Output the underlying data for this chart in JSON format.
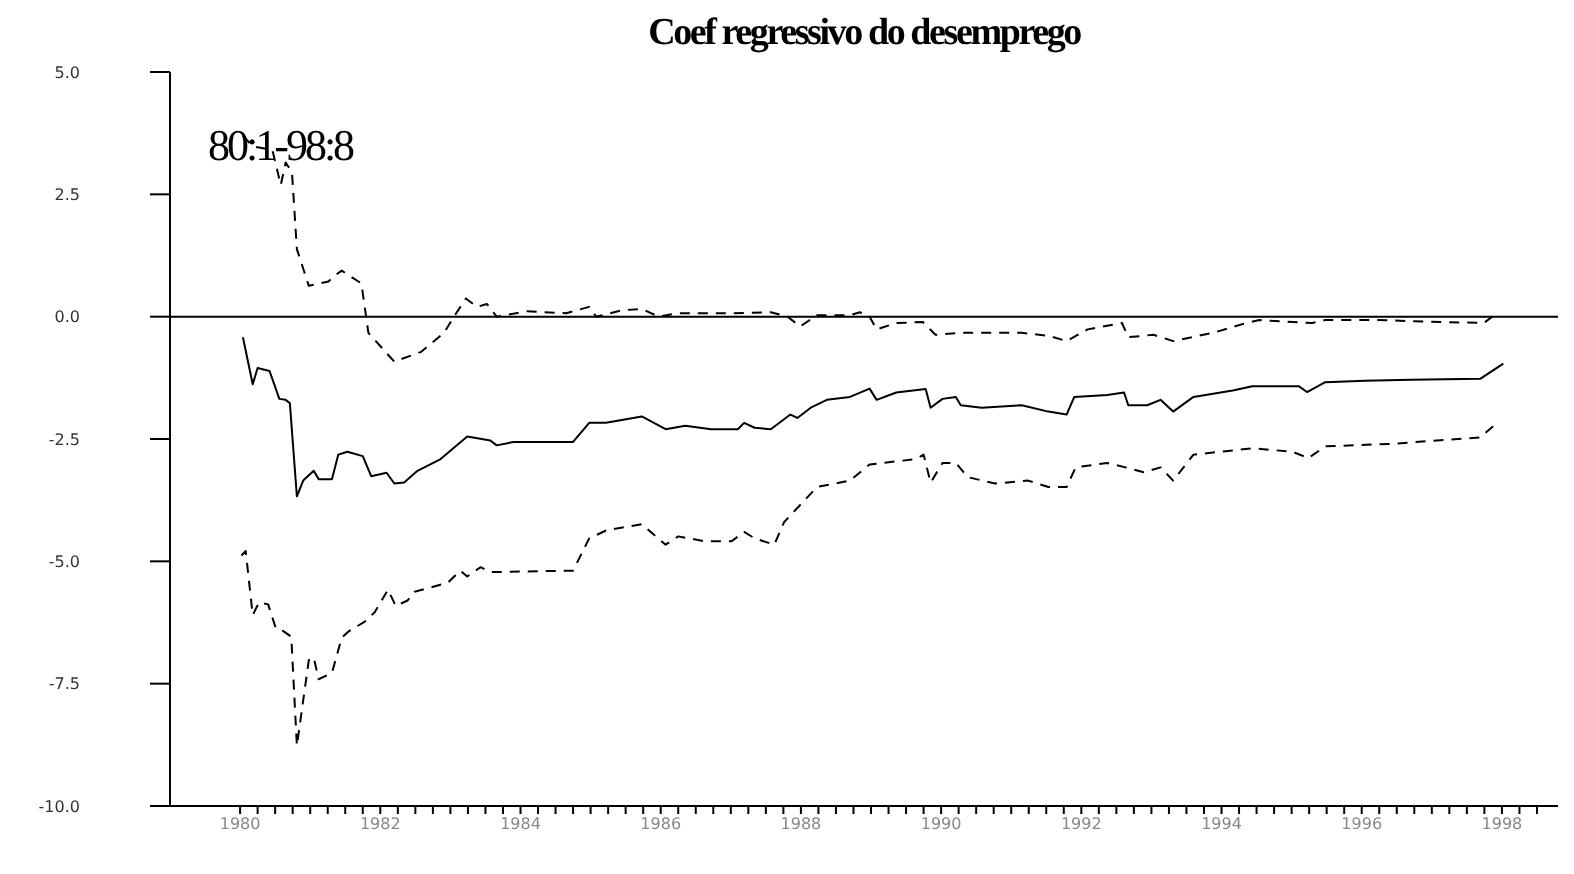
{
  "chart_data": {
    "type": "line",
    "title": "Coef regressivo do desemprego",
    "annotations": [
      "80:1-98:8"
    ],
    "marker": "none",
    "grid": false,
    "xlim": [
      1979,
      1998.8
    ],
    "ylim": [
      -10,
      5
    ],
    "yticks": [
      {
        "value": -10,
        "label": "-10.0"
      },
      {
        "value": -7.5,
        "label": "-7.5"
      },
      {
        "value": -5,
        "label": "-5.0"
      },
      {
        "value": -2.5,
        "label": "-2.5"
      },
      {
        "value": 0,
        "label": "0.0"
      },
      {
        "value": 2.5,
        "label": "2.5"
      },
      {
        "value": 5,
        "label": "5.0"
      }
    ],
    "xticks": [
      1980,
      {
        "value": 1980.25,
        "label": null
      },
      {
        "value": 1980.5,
        "label": null
      },
      {
        "value": 1980.75,
        "label": null
      },
      {
        "value": 1981,
        "label": null
      },
      {
        "value": 1981.25,
        "label": null
      },
      {
        "value": 1981.5,
        "label": null
      },
      {
        "value": 1981.75,
        "label": null
      },
      1982,
      {
        "value": 1982.25,
        "label": null
      },
      {
        "value": 1982.5,
        "label": null
      },
      {
        "value": 1982.75,
        "label": null
      },
      {
        "value": 1983,
        "label": null
      },
      {
        "value": 1983.25,
        "label": null
      },
      {
        "value": 1983.5,
        "label": null
      },
      {
        "value": 1983.75,
        "label": null
      },
      1984,
      {
        "value": 1984.25,
        "label": null
      },
      {
        "value": 1984.5,
        "label": null
      },
      {
        "value": 1984.75,
        "label": null
      },
      {
        "value": 1985,
        "label": null
      },
      {
        "value": 1985.25,
        "label": null
      },
      {
        "value": 1985.5,
        "label": null
      },
      {
        "value": 1985.75,
        "label": null
      },
      1986,
      {
        "value": 1986.25,
        "label": null
      },
      {
        "value": 1986.5,
        "label": null
      },
      {
        "value": 1986.75,
        "label": null
      },
      {
        "value": 1987,
        "label": null
      },
      {
        "value": 1987.25,
        "label": null
      },
      {
        "value": 1987.5,
        "label": null
      },
      {
        "value": 1987.75,
        "label": null
      },
      1988,
      {
        "value": 1988.25,
        "label": null
      },
      {
        "value": 1988.5,
        "label": null
      },
      {
        "value": 1988.75,
        "label": null
      },
      {
        "value": 1989,
        "label": null
      },
      {
        "value": 1989.25,
        "label": null
      },
      {
        "value": 1989.5,
        "label": null
      },
      {
        "value": 1989.75,
        "label": null
      },
      1990,
      {
        "value": 1990.25,
        "label": null
      },
      {
        "value": 1990.5,
        "label": null
      },
      {
        "value": 1990.75,
        "label": null
      },
      {
        "value": 1991,
        "label": null
      },
      {
        "value": 1991.25,
        "label": null
      },
      {
        "value": 1991.5,
        "label": null
      },
      {
        "value": 1991.75,
        "label": null
      },
      1992,
      {
        "value": 1992.25,
        "label": null
      },
      {
        "value": 1992.5,
        "label": null
      },
      {
        "value": 1992.75,
        "label": null
      },
      {
        "value": 1993,
        "label": null
      },
      {
        "value": 1993.25,
        "label": null
      },
      {
        "value": 1993.5,
        "label": null
      },
      {
        "value": 1993.75,
        "label": null
      },
      1994,
      {
        "value": 1994.25,
        "label": null
      },
      {
        "value": 1994.5,
        "label": null
      },
      {
        "value": 1994.75,
        "label": null
      },
      {
        "value": 1995,
        "label": null
      },
      {
        "value": 1995.25,
        "label": null
      },
      {
        "value": 1995.5,
        "label": null
      },
      {
        "value": 1995.75,
        "label": null
      },
      1996,
      {
        "value": 1996.25,
        "label": null
      },
      {
        "value": 1996.5,
        "label": null
      },
      {
        "value": 1996.75,
        "label": null
      },
      {
        "value": 1997,
        "label": null
      },
      {
        "value": 1997.25,
        "label": null
      },
      {
        "value": 1997.5,
        "label": null
      },
      {
        "value": 1997.75,
        "label": null
      },
      1998,
      {
        "value": 1998.25,
        "label": null
      },
      {
        "value": 1998.5,
        "label": null
      }
    ],
    "ref_lines": [
      {
        "axis": "y",
        "value": 0,
        "color": "#000000"
      }
    ],
    "series": [
      {
        "color": "#000000",
        "line_style": "solid",
        "x": [
          1980.04,
          1980.18,
          1980.25,
          1980.42,
          1980.56,
          1980.65,
          1980.71,
          1980.81,
          1980.9,
          1981.05,
          1981.12,
          1981.31,
          1981.4,
          1981.53,
          1981.75,
          1981.87,
          1982.09,
          1982.2,
          1982.34,
          1982.53,
          1982.86,
          1983.24,
          1983.57,
          1983.66,
          1983.9,
          1984.75,
          1984.98,
          1985.22,
          1985.73,
          1986.07,
          1986.35,
          1986.72,
          1987.1,
          1987.19,
          1987.34,
          1987.57,
          1987.85,
          1987.95,
          1988.14,
          1988.37,
          1988.7,
          1988.98,
          1989.08,
          1989.36,
          1989.78,
          1989.85,
          1990.02,
          1990.21,
          1990.28,
          1990.58,
          1991.15,
          1991.53,
          1991.79,
          1991.9,
          1992.37,
          1992.61,
          1992.67,
          1992.94,
          1993.13,
          1993.31,
          1993.6,
          1994.16,
          1994.44,
          1995.1,
          1995.22,
          1995.48,
          1996.05,
          1996.7,
          1997.69,
          1998.02
        ],
        "values": [
          -0.42,
          -1.38,
          -1.05,
          -1.11,
          -1.68,
          -1.7,
          -1.77,
          -3.67,
          -3.35,
          -3.15,
          -3.32,
          -3.32,
          -2.82,
          -2.76,
          -2.85,
          -3.26,
          -3.19,
          -3.41,
          -3.39,
          -3.15,
          -2.91,
          -2.45,
          -2.53,
          -2.63,
          -2.56,
          -2.56,
          -2.17,
          -2.17,
          -2.04,
          -2.3,
          -2.23,
          -2.3,
          -2.3,
          -2.17,
          -2.27,
          -2.3,
          -2,
          -2.07,
          -1.86,
          -1.7,
          -1.64,
          -1.47,
          -1.7,
          -1.55,
          -1.48,
          -1.86,
          -1.68,
          -1.64,
          -1.81,
          -1.86,
          -1.81,
          -1.94,
          -2,
          -1.64,
          -1.6,
          -1.55,
          -1.81,
          -1.81,
          -1.7,
          -1.94,
          -1.64,
          -1.51,
          -1.42,
          -1.42,
          -1.54,
          -1.34,
          -1.31,
          -1.29,
          -1.27,
          -0.96
        ]
      },
      {
        "color": "#000000",
        "line_style": "dashed",
        "x": [
          1980.04,
          1980.18,
          1980.46,
          1980.58,
          1980.65,
          1980.74,
          1980.81,
          1980.98,
          1981.26,
          1981.36,
          1981.45,
          1981.73,
          1981.83,
          1982.2,
          1982.58,
          1982.91,
          1983.05,
          1983.22,
          1983.38,
          1983.52,
          1983.66,
          1984.09,
          1984.65,
          1984.98,
          1985.08,
          1985.45,
          1985.73,
          1985.97,
          1986.25,
          1987.01,
          1987.57,
          1987.81,
          1987.99,
          1988.23,
          1988.7,
          1988.84,
          1988.98,
          1989.08,
          1989.36,
          1989.74,
          1989.92,
          1990.3,
          1991.15,
          1991.53,
          1991.79,
          1992.09,
          1992.58,
          1992.67,
          1993.03,
          1993.31,
          1993.88,
          1994.35,
          1994.54,
          1995.29,
          1995.48,
          1996.23,
          1997.18,
          1997.74,
          1997.93
        ],
        "values": [
          3.7,
          3.48,
          3.41,
          2.69,
          3.15,
          2.95,
          1.38,
          0.63,
          0.72,
          0.85,
          0.94,
          0.68,
          -0.33,
          -0.92,
          -0.72,
          -0.33,
          0,
          0.37,
          0.2,
          0.26,
          0,
          0.11,
          0.07,
          0.2,
          0,
          0.13,
          0.16,
          0,
          0.07,
          0.07,
          0.09,
          0,
          -0.2,
          0.03,
          0.03,
          0.09,
          0,
          -0.26,
          -0.13,
          -0.11,
          -0.37,
          -0.33,
          -0.33,
          -0.39,
          -0.5,
          -0.26,
          -0.13,
          -0.42,
          -0.37,
          -0.5,
          -0.33,
          -0.13,
          -0.07,
          -0.13,
          -0.07,
          -0.07,
          -0.11,
          -0.13,
          0.07
        ]
      },
      {
        "color": "#000000",
        "line_style": "dashed",
        "x": [
          1980.02,
          1980.08,
          1980.18,
          1980.27,
          1980.4,
          1980.51,
          1980.6,
          1980.73,
          1980.81,
          1980.98,
          1981.05,
          1981.12,
          1981.31,
          1981.45,
          1981.55,
          1981.78,
          1981.92,
          1982.11,
          1982.22,
          1982.39,
          1982.49,
          1982.96,
          1983.14,
          1983.24,
          1983.43,
          1983.57,
          1984.75,
          1984.98,
          1985.22,
          1985.73,
          1986.07,
          1986.25,
          1986.63,
          1987.01,
          1987.19,
          1987.34,
          1987.62,
          1987.76,
          1988.23,
          1988.7,
          1988.98,
          1989.64,
          1989.75,
          1989.85,
          1990.02,
          1990.21,
          1990.38,
          1990.77,
          1991.24,
          1991.53,
          1991.79,
          1991.92,
          1992.37,
          1992.63,
          1992.89,
          1993.13,
          1993.31,
          1993.6,
          1994.44,
          1995.01,
          1995.24,
          1995.48,
          1996.42,
          1997.18,
          1997.69,
          1997.93
        ],
        "values": [
          -4.88,
          -4.79,
          -6.1,
          -5.84,
          -5.88,
          -6.37,
          -6.41,
          -6.54,
          -8.77,
          -7.02,
          -6.96,
          -7.41,
          -7.28,
          -6.56,
          -6.43,
          -6.23,
          -6.04,
          -5.58,
          -5.91,
          -5.8,
          -5.62,
          -5.44,
          -5.19,
          -5.31,
          -5.12,
          -5.22,
          -5.19,
          -4.53,
          -4.37,
          -4.24,
          -4.66,
          -4.49,
          -4.59,
          -4.59,
          -4.4,
          -4.53,
          -4.66,
          -4.2,
          -3.48,
          -3.35,
          -3.02,
          -2.91,
          -2.82,
          -3.39,
          -2.99,
          -2.99,
          -3.28,
          -3.41,
          -3.35,
          -3.48,
          -3.48,
          -3.08,
          -2.99,
          -3.08,
          -3.18,
          -3.08,
          -3.35,
          -2.82,
          -2.69,
          -2.76,
          -2.89,
          -2.65,
          -2.6,
          -2.52,
          -2.47,
          -2.17
        ]
      }
    ]
  }
}
